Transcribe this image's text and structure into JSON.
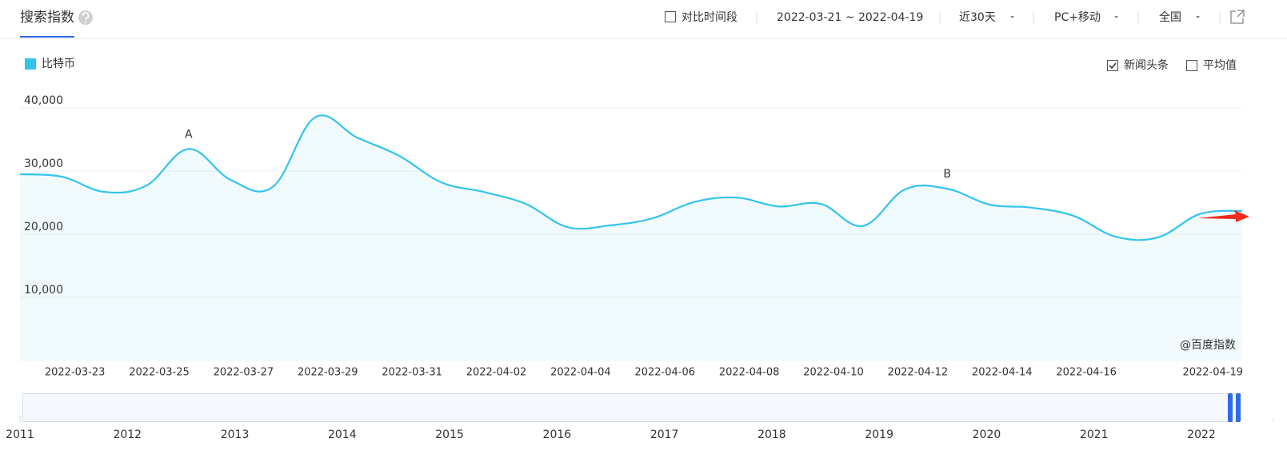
{
  "header": {
    "title": "搜索指数",
    "compare": "对比时间段",
    "date_range": "2022-03-21 ~ 2022-04-19",
    "period": "近30天",
    "device": "PC+移动",
    "region": "全国"
  },
  "options": {
    "news": "新闻头条",
    "news_checked": true,
    "average": "平均值",
    "average_checked": false
  },
  "watermark": "@百度指数",
  "chart_data": {
    "type": "line",
    "x": [
      null,
      null,
      "2022-03-23",
      null,
      "2022-03-25",
      null,
      "2022-03-27",
      null,
      "2022-03-29",
      null,
      "2022-03-31",
      null,
      "2022-04-02",
      null,
      "2022-04-04",
      null,
      "2022-04-06",
      null,
      "2022-04-08",
      null,
      "2022-04-10",
      null,
      "2022-04-12",
      null,
      "2022-04-14",
      null,
      "2022-04-16",
      null,
      null,
      "2022-04-19"
    ],
    "series": [
      {
        "name": "比特币",
        "color": "#33c3ef",
        "values": [
          29500,
          29100,
          26700,
          27700,
          33500,
          28600,
          27500,
          38500,
          35300,
          32400,
          28200,
          26700,
          24800,
          21100,
          21400,
          22500,
          25100,
          25800,
          24400,
          24800,
          21300,
          27100,
          27200,
          24700,
          24200,
          22900,
          19600,
          19500,
          23200,
          23700
        ]
      }
    ],
    "annotations": [
      null,
      null,
      null,
      null,
      "A",
      null,
      null,
      null,
      null,
      null,
      null,
      null,
      null,
      null,
      null,
      null,
      null,
      null,
      null,
      null,
      null,
      null,
      "B",
      null,
      null,
      null,
      null,
      null,
      null,
      null
    ],
    "ylim": [
      0,
      40000
    ],
    "yticks": [
      {
        "value": 10000,
        "label": "10,000"
      },
      {
        "value": 20000,
        "label": "20,000"
      },
      {
        "value": 30000,
        "label": "30,000"
      },
      {
        "value": 40000,
        "label": "40,000"
      }
    ],
    "grid": true
  },
  "timeline": {
    "years": [
      "2011",
      "2012",
      "2013",
      "2014",
      "2015",
      "2016",
      "2017",
      "2018",
      "2019",
      "2020",
      "2021",
      "2022"
    ]
  }
}
